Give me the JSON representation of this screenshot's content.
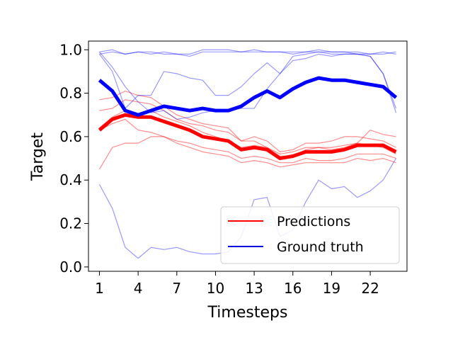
{
  "chart_data": {
    "type": "line",
    "xlabel": "Timesteps",
    "ylabel": "Target",
    "xlim": [
      0.15,
      24.85
    ],
    "ylim": [
      -0.02,
      1.04
    ],
    "xticks": [
      "1",
      "4",
      "7",
      "10",
      "13",
      "16",
      "19",
      "22"
    ],
    "yticks": [
      "0.0",
      "0.2",
      "0.4",
      "0.6",
      "0.8",
      "1.0"
    ],
    "x": [
      1,
      2,
      3,
      4,
      5,
      6,
      7,
      8,
      9,
      10,
      11,
      12,
      13,
      14,
      15,
      16,
      17,
      18,
      19,
      20,
      21,
      22,
      23,
      24
    ],
    "legend": {
      "position": "lower-right",
      "entries": [
        {
          "label": "Predictions",
          "color": "#ff0000"
        },
        {
          "label": "Ground truth",
          "color": "#0000dd"
        }
      ]
    },
    "series": [
      {
        "role": "prediction-mean",
        "color": "#ff0000",
        "values": [
          0.63,
          0.68,
          0.7,
          0.69,
          0.69,
          0.67,
          0.65,
          0.63,
          0.6,
          0.59,
          0.58,
          0.54,
          0.55,
          0.54,
          0.5,
          0.51,
          0.53,
          0.53,
          0.53,
          0.54,
          0.56,
          0.56,
          0.56,
          0.53
        ]
      },
      {
        "role": "ground-truth-mean",
        "color": "#0000ff",
        "values": [
          0.86,
          0.81,
          0.72,
          0.7,
          0.72,
          0.74,
          0.73,
          0.72,
          0.73,
          0.72,
          0.72,
          0.74,
          0.78,
          0.81,
          0.78,
          0.82,
          0.85,
          0.87,
          0.86,
          0.86,
          0.85,
          0.84,
          0.83,
          0.78
        ]
      },
      {
        "role": "prediction",
        "color": "#ff0000",
        "values": [
          0.77,
          0.78,
          0.81,
          0.79,
          0.78,
          0.74,
          0.7,
          0.68,
          0.66,
          0.65,
          0.64,
          0.58,
          0.6,
          0.58,
          0.53,
          0.54,
          0.57,
          0.57,
          0.58,
          0.6,
          0.6,
          0.59,
          0.58,
          0.55
        ]
      },
      {
        "role": "prediction",
        "color": "#ff0000",
        "values": [
          0.72,
          0.73,
          0.77,
          0.76,
          0.75,
          0.72,
          0.68,
          0.66,
          0.65,
          0.63,
          0.62,
          0.58,
          0.58,
          0.55,
          0.52,
          0.53,
          0.55,
          0.55,
          0.55,
          0.56,
          0.57,
          0.56,
          0.55,
          0.52
        ]
      },
      {
        "role": "prediction",
        "color": "#ff0000",
        "values": [
          0.63,
          0.66,
          0.68,
          0.63,
          0.62,
          0.6,
          0.58,
          0.57,
          0.55,
          0.54,
          0.53,
          0.5,
          0.51,
          0.5,
          0.48,
          0.48,
          0.5,
          0.49,
          0.49,
          0.5,
          0.52,
          0.52,
          0.52,
          0.5
        ]
      },
      {
        "role": "prediction",
        "color": "#ff0000",
        "values": [
          0.45,
          0.55,
          0.57,
          0.57,
          0.6,
          0.6,
          0.57,
          0.55,
          0.53,
          0.52,
          0.51,
          0.48,
          0.49,
          0.48,
          0.46,
          0.47,
          0.48,
          0.48,
          0.48,
          0.48,
          0.5,
          0.49,
          0.5,
          0.48
        ]
      },
      {
        "role": "prediction",
        "color": "#ff0000",
        "values": [
          0.64,
          0.69,
          0.72,
          0.7,
          0.72,
          0.69,
          0.67,
          0.65,
          0.62,
          0.6,
          0.58,
          0.55,
          0.56,
          0.55,
          0.51,
          0.51,
          0.54,
          0.55,
          0.54,
          0.55,
          0.57,
          0.63,
          0.61,
          0.6
        ]
      },
      {
        "role": "ground-truth",
        "color": "#0000ff",
        "values": [
          0.99,
          1.0,
          0.98,
          0.99,
          0.99,
          0.98,
          0.98,
          0.97,
          0.99,
          0.99,
          0.99,
          0.99,
          0.99,
          0.99,
          0.99,
          0.98,
          0.99,
          0.99,
          0.99,
          0.99,
          0.98,
          0.98,
          0.98,
          0.99
        ]
      },
      {
        "role": "ground-truth",
        "color": "#0000ff",
        "values": [
          0.98,
          0.99,
          0.98,
          0.99,
          0.98,
          0.99,
          0.98,
          0.98,
          1.0,
          1.0,
          1.0,
          0.99,
          1.0,
          0.99,
          0.99,
          0.99,
          0.99,
          1.0,
          0.99,
          0.99,
          0.99,
          0.98,
          0.99,
          0.98
        ]
      },
      {
        "role": "ground-truth",
        "color": "#0000ff",
        "values": [
          0.99,
          0.92,
          0.83,
          0.76,
          0.71,
          0.72,
          0.68,
          0.69,
          0.71,
          0.72,
          0.72,
          0.73,
          0.73,
          0.82,
          0.89,
          0.97,
          0.98,
          0.99,
          0.98,
          0.98,
          0.98,
          0.97,
          0.89,
          0.73
        ]
      },
      {
        "role": "ground-truth",
        "color": "#0000ff",
        "values": [
          0.98,
          0.9,
          0.73,
          0.79,
          0.79,
          0.9,
          0.89,
          0.87,
          0.86,
          0.79,
          0.79,
          0.83,
          0.89,
          0.94,
          0.89,
          0.95,
          0.96,
          0.98,
          0.97,
          0.98,
          0.98,
          0.97,
          0.89,
          0.71
        ]
      },
      {
        "role": "ground-truth",
        "color": "#0000ff",
        "values": [
          0.38,
          0.27,
          0.09,
          0.04,
          0.09,
          0.08,
          0.09,
          0.07,
          0.06,
          0.06,
          0.07,
          0.14,
          0.31,
          0.32,
          0.14,
          0.17,
          0.3,
          0.4,
          0.36,
          0.37,
          0.32,
          0.35,
          0.4,
          0.5
        ]
      }
    ]
  }
}
